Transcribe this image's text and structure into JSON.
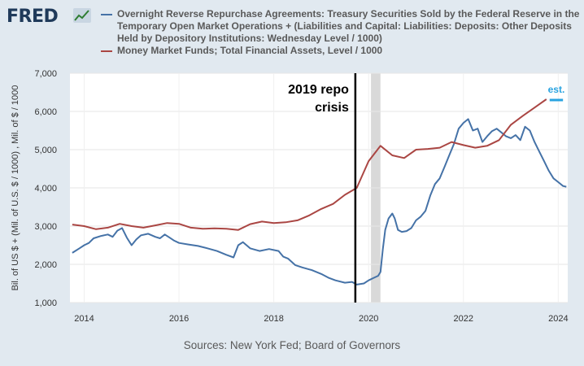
{
  "header": {
    "logo_text": "FRED",
    "logo_icon": "fred-chart-icon"
  },
  "source": "Sources: New York Fed; Board of Governors",
  "colors": {
    "series1": "#4572a7",
    "series2": "#aa4643",
    "recession": "#d9d9d9",
    "est": "#29a3e0",
    "plot_bg": "#ffffff",
    "frame_bg": "#e1e9f0"
  },
  "chart_data": {
    "type": "line",
    "ylabel": "Bil. of US $ + (Mil. of U.S. $ / 1000) , Mil. of $ / 1000",
    "xlim": [
      2013.7,
      2024.2
    ],
    "ylim": [
      1000,
      7000
    ],
    "xticks": [
      2014,
      2016,
      2018,
      2020,
      2022,
      2024
    ],
    "yticks": [
      1000,
      2000,
      3000,
      4000,
      5000,
      6000,
      7000
    ],
    "ytick_labels": [
      "1,000",
      "2,000",
      "3,000",
      "4,000",
      "5,000",
      "6,000",
      "7,000"
    ],
    "shaded_periods": [
      [
        2020.05,
        2020.25
      ]
    ],
    "grid": true,
    "legend_position": "top",
    "series": [
      {
        "name": "Overnight Reverse Repurchase Agreements: Treasury Securities Sold by the Federal Reserve in the Temporary Open Market Operations + (Liabilities and Capital: Liabilities: Deposits: Other Deposits Held by Depository Institutions: Wednesday Level / 1000)",
        "color": "#4572a7",
        "points": [
          [
            2013.75,
            2300
          ],
          [
            2013.9,
            2420
          ],
          [
            2014.0,
            2500
          ],
          [
            2014.1,
            2560
          ],
          [
            2014.2,
            2680
          ],
          [
            2014.35,
            2740
          ],
          [
            2014.5,
            2780
          ],
          [
            2014.6,
            2720
          ],
          [
            2014.7,
            2880
          ],
          [
            2014.8,
            2950
          ],
          [
            2014.9,
            2700
          ],
          [
            2015.0,
            2500
          ],
          [
            2015.1,
            2650
          ],
          [
            2015.2,
            2760
          ],
          [
            2015.35,
            2800
          ],
          [
            2015.5,
            2720
          ],
          [
            2015.6,
            2680
          ],
          [
            2015.7,
            2780
          ],
          [
            2015.8,
            2700
          ],
          [
            2015.9,
            2620
          ],
          [
            2016.0,
            2560
          ],
          [
            2016.2,
            2520
          ],
          [
            2016.4,
            2480
          ],
          [
            2016.6,
            2420
          ],
          [
            2016.8,
            2350
          ],
          [
            2017.0,
            2250
          ],
          [
            2017.15,
            2180
          ],
          [
            2017.25,
            2500
          ],
          [
            2017.35,
            2580
          ],
          [
            2017.5,
            2420
          ],
          [
            2017.7,
            2350
          ],
          [
            2017.9,
            2400
          ],
          [
            2018.1,
            2350
          ],
          [
            2018.2,
            2200
          ],
          [
            2018.3,
            2150
          ],
          [
            2018.45,
            1980
          ],
          [
            2018.6,
            1920
          ],
          [
            2018.8,
            1850
          ],
          [
            2019.0,
            1750
          ],
          [
            2019.15,
            1650
          ],
          [
            2019.3,
            1580
          ],
          [
            2019.5,
            1520
          ],
          [
            2019.65,
            1540
          ],
          [
            2019.75,
            1470
          ],
          [
            2019.9,
            1500
          ],
          [
            2020.0,
            1580
          ],
          [
            2020.1,
            1640
          ],
          [
            2020.2,
            1700
          ],
          [
            2020.25,
            1800
          ],
          [
            2020.3,
            2400
          ],
          [
            2020.35,
            2900
          ],
          [
            2020.42,
            3200
          ],
          [
            2020.5,
            3330
          ],
          [
            2020.55,
            3200
          ],
          [
            2020.62,
            2900
          ],
          [
            2020.7,
            2850
          ],
          [
            2020.8,
            2870
          ],
          [
            2020.9,
            2950
          ],
          [
            2021.0,
            3150
          ],
          [
            2021.1,
            3250
          ],
          [
            2021.2,
            3400
          ],
          [
            2021.3,
            3800
          ],
          [
            2021.4,
            4100
          ],
          [
            2021.5,
            4250
          ],
          [
            2021.6,
            4550
          ],
          [
            2021.7,
            4850
          ],
          [
            2021.8,
            5150
          ],
          [
            2021.9,
            5550
          ],
          [
            2022.0,
            5700
          ],
          [
            2022.1,
            5800
          ],
          [
            2022.2,
            5500
          ],
          [
            2022.3,
            5550
          ],
          [
            2022.4,
            5200
          ],
          [
            2022.5,
            5350
          ],
          [
            2022.6,
            5480
          ],
          [
            2022.7,
            5550
          ],
          [
            2022.8,
            5450
          ],
          [
            2022.9,
            5350
          ],
          [
            2023.0,
            5300
          ],
          [
            2023.1,
            5380
          ],
          [
            2023.2,
            5250
          ],
          [
            2023.3,
            5600
          ],
          [
            2023.4,
            5500
          ],
          [
            2023.5,
            5200
          ],
          [
            2023.6,
            4950
          ],
          [
            2023.7,
            4700
          ],
          [
            2023.8,
            4450
          ],
          [
            2023.9,
            4250
          ],
          [
            2024.0,
            4150
          ],
          [
            2024.1,
            4050
          ],
          [
            2024.17,
            4030
          ]
        ]
      },
      {
        "name": "Money Market Funds; Total Financial Assets, Level / 1000",
        "color": "#aa4643",
        "points": [
          [
            2013.75,
            3040
          ],
          [
            2014.0,
            3000
          ],
          [
            2014.25,
            2920
          ],
          [
            2014.5,
            2960
          ],
          [
            2014.75,
            3060
          ],
          [
            2015.0,
            3000
          ],
          [
            2015.25,
            2960
          ],
          [
            2015.5,
            3020
          ],
          [
            2015.75,
            3080
          ],
          [
            2016.0,
            3060
          ],
          [
            2016.25,
            2960
          ],
          [
            2016.5,
            2930
          ],
          [
            2016.75,
            2940
          ],
          [
            2017.0,
            2930
          ],
          [
            2017.25,
            2900
          ],
          [
            2017.5,
            3050
          ],
          [
            2017.75,
            3120
          ],
          [
            2018.0,
            3080
          ],
          [
            2018.25,
            3100
          ],
          [
            2018.5,
            3150
          ],
          [
            2018.75,
            3280
          ],
          [
            2019.0,
            3450
          ],
          [
            2019.25,
            3580
          ],
          [
            2019.5,
            3820
          ],
          [
            2019.75,
            4000
          ],
          [
            2020.0,
            4700
          ],
          [
            2020.25,
            5100
          ],
          [
            2020.5,
            4850
          ],
          [
            2020.75,
            4780
          ],
          [
            2021.0,
            5000
          ],
          [
            2021.25,
            5020
          ],
          [
            2021.5,
            5050
          ],
          [
            2021.75,
            5200
          ],
          [
            2022.0,
            5120
          ],
          [
            2022.25,
            5050
          ],
          [
            2022.5,
            5100
          ],
          [
            2022.75,
            5250
          ],
          [
            2023.0,
            5650
          ],
          [
            2023.25,
            5880
          ],
          [
            2023.5,
            6100
          ],
          [
            2023.75,
            6320
          ]
        ]
      }
    ],
    "annotations": [
      {
        "text_lines": [
          "2019 repo",
          "crisis"
        ],
        "x": 2019.72
      }
    ],
    "estimate": {
      "label": "est.",
      "x_start": 2023.75,
      "x_end": 2024.1,
      "y": 6320
    }
  }
}
